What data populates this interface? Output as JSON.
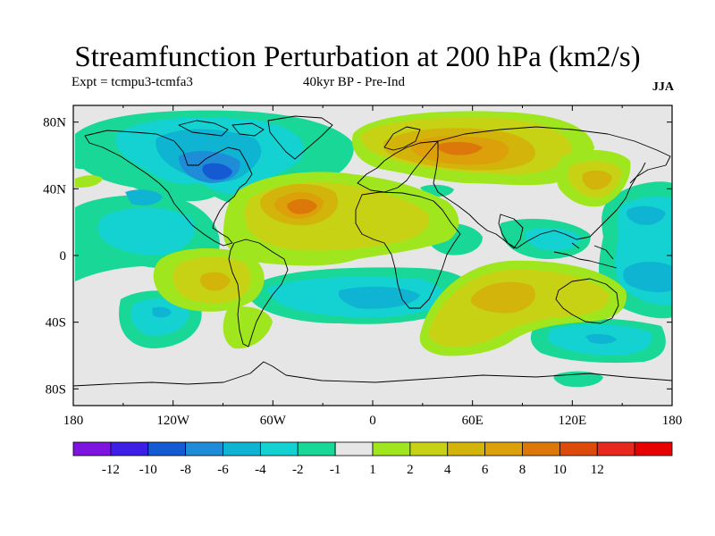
{
  "title": "Streamfunction Perturbation at 200 hPa (km2/s)",
  "subtitle_left": "Expt = tcmpu3-tcmfa3",
  "subtitle_center": "40kyr BP - Pre-Ind",
  "subtitle_right": "JJA",
  "map": {
    "projection": "cylindrical equidistant",
    "lon_range": [
      -180,
      180
    ],
    "lat_range": [
      -90,
      90
    ],
    "lat_ticks": [
      {
        "value": 80,
        "label": "80N"
      },
      {
        "value": 40,
        "label": "40N"
      },
      {
        "value": 0,
        "label": "0"
      },
      {
        "value": -40,
        "label": "40S"
      },
      {
        "value": -80,
        "label": "80S"
      }
    ],
    "lon_ticks": [
      {
        "value": -180,
        "label": "180"
      },
      {
        "value": -120,
        "label": "120W"
      },
      {
        "value": -60,
        "label": "60W"
      },
      {
        "value": 0,
        "label": "0"
      },
      {
        "value": 60,
        "label": "60E"
      },
      {
        "value": 120,
        "label": "120E"
      },
      {
        "value": 180,
        "label": "180"
      }
    ],
    "colors": {
      "b6": "#7d14e0",
      "b5": "#3c1ee6",
      "b4": "#145ad2",
      "b3": "#1e8cd7",
      "b2": "#0fb4d2",
      "b1": "#14d2d2",
      "b0": "#19d796",
      "zero": "#e6e6e6",
      "p1": "#a0e61e",
      "p2": "#c8d214",
      "p3": "#d2b40a",
      "p4": "#dca00a",
      "p5": "#dc780a",
      "p6": "#dc4b0a",
      "p7": "#e6281e",
      "p8": "#e60000"
    }
  },
  "colorbar": {
    "colors": [
      "#7d14e0",
      "#3c1ee6",
      "#145ad2",
      "#1e8cd7",
      "#0fb4d2",
      "#14d2d2",
      "#19d796",
      "#e6e6e6",
      "#a0e61e",
      "#c8d214",
      "#d2b40a",
      "#dca00a",
      "#dc780a",
      "#dc4b0a",
      "#e6281e",
      "#e60000"
    ],
    "labels": [
      "-12",
      "-10",
      "-8",
      "-6",
      "-4",
      "-2",
      "-1",
      "1",
      "2",
      "4",
      "6",
      "8",
      "10",
      "12"
    ]
  }
}
